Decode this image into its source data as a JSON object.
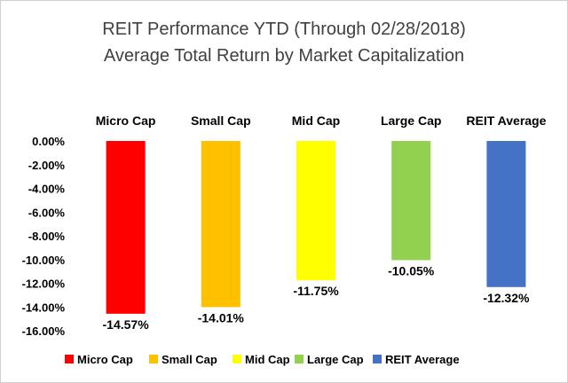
{
  "chart_data": {
    "type": "bar",
    "title": "REIT Performance YTD (Through 02/28/2018)",
    "subtitle": "Average Total Return by Market Capitalization",
    "categories": [
      "Micro Cap",
      "Small Cap",
      "Mid Cap",
      "Large Cap",
      "REIT Average"
    ],
    "values": [
      -14.57,
      -14.01,
      -11.75,
      -10.05,
      -12.32
    ],
    "data_labels": [
      "-14.57%",
      "-14.01%",
      "-11.75%",
      "-10.05%",
      "-12.32%"
    ],
    "colors": [
      "#ff0000",
      "#ffc000",
      "#ffff00",
      "#92d050",
      "#4472c4"
    ],
    "ylim": [
      -16,
      0
    ],
    "yticks": [
      0,
      -2,
      -4,
      -6,
      -8,
      -10,
      -12,
      -14,
      -16
    ],
    "ytick_labels": [
      "0.00%",
      "-2.00%",
      "-4.00%",
      "-6.00%",
      "-8.00%",
      "-10.00%",
      "-12.00%",
      "-14.00%",
      "-16.00%"
    ],
    "category_labels_position": "top",
    "grid": false,
    "legend": {
      "position": "bottom",
      "entries": [
        "Micro Cap",
        "Small Cap",
        "Mid Cap",
        "Large Cap",
        "REIT Average"
      ]
    }
  }
}
